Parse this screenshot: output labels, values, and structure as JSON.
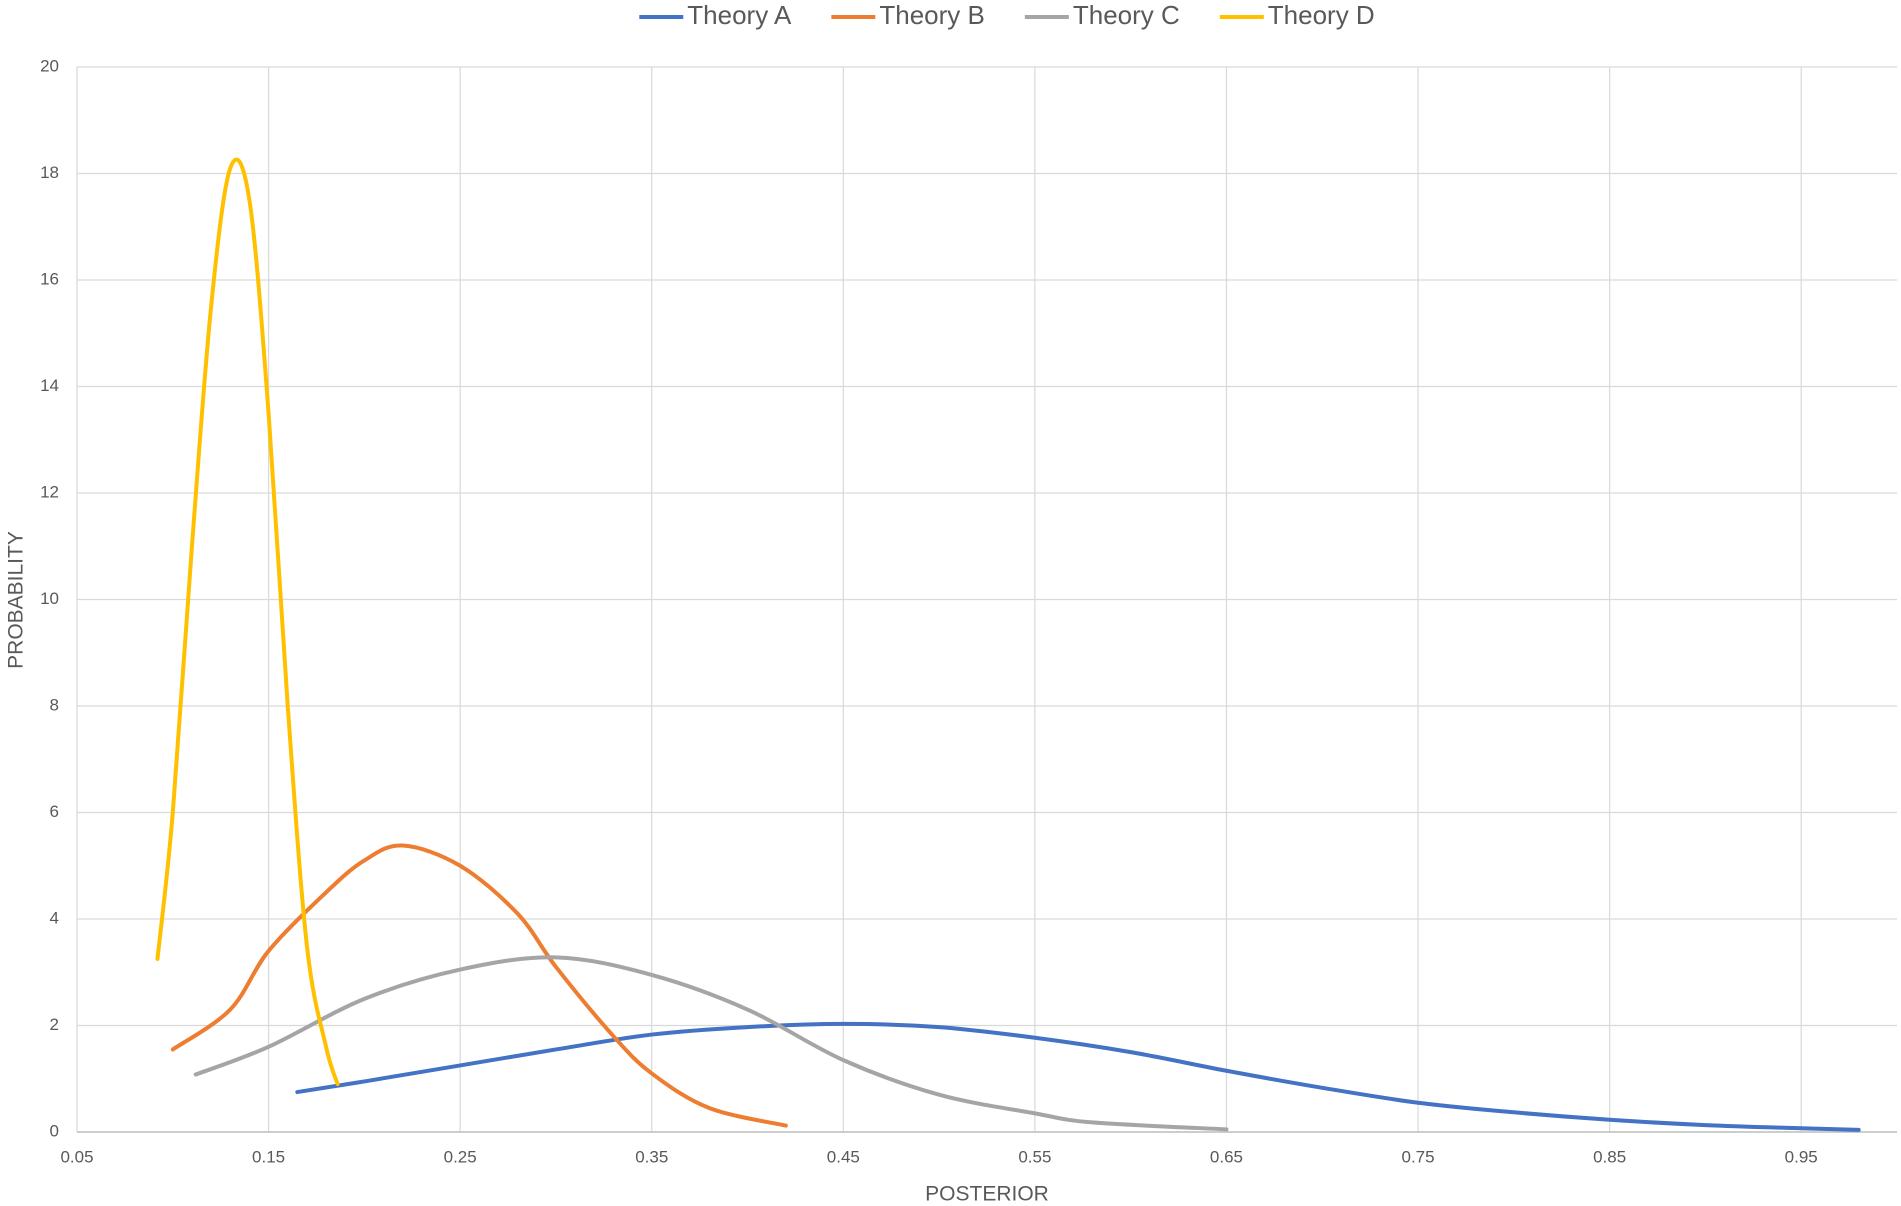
{
  "chart_data": {
    "type": "line",
    "x_label": "POSTERIOR",
    "y_label": "PROBABILITY",
    "xlim": [
      0.05,
      1.0
    ],
    "xticks": [
      0.05,
      0.15,
      0.25,
      0.35,
      0.45,
      0.55,
      0.65,
      0.75,
      0.85,
      0.95
    ],
    "ylim": [
      0,
      20
    ],
    "yticks": [
      0,
      2,
      4,
      6,
      8,
      10,
      12,
      14,
      16,
      18,
      20
    ],
    "grid": true,
    "legend": "top",
    "smooth": true,
    "series": [
      {
        "name": "Theory A",
        "color": "#4472c4",
        "x": [
          0.165,
          0.2,
          0.25,
          0.3,
          0.35,
          0.4,
          0.45,
          0.5,
          0.55,
          0.6,
          0.65,
          0.7,
          0.75,
          0.8,
          0.85,
          0.9,
          0.95,
          0.98
        ],
        "values": [
          0.75,
          0.95,
          1.25,
          1.55,
          1.83,
          1.97,
          2.03,
          1.97,
          1.77,
          1.5,
          1.15,
          0.83,
          0.55,
          0.37,
          0.23,
          0.13,
          0.07,
          0.04
        ]
      },
      {
        "name": "Theory B",
        "color": "#ed7d31",
        "x": [
          0.1,
          0.13,
          0.15,
          0.18,
          0.2,
          0.22,
          0.25,
          0.28,
          0.3,
          0.33,
          0.35,
          0.38,
          0.42
        ],
        "values": [
          1.55,
          2.3,
          3.4,
          4.5,
          5.1,
          5.38,
          5.0,
          4.1,
          3.1,
          1.8,
          1.1,
          0.45,
          0.12
        ]
      },
      {
        "name": "Theory C",
        "color": "#a5a5a5",
        "x": [
          0.112,
          0.15,
          0.2,
          0.25,
          0.3,
          0.35,
          0.4,
          0.45,
          0.5,
          0.55,
          0.58,
          0.65
        ],
        "values": [
          1.08,
          1.6,
          2.5,
          3.05,
          3.28,
          2.95,
          2.3,
          1.35,
          0.7,
          0.35,
          0.18,
          0.05
        ]
      },
      {
        "name": "Theory D",
        "color": "#ffc000",
        "x": [
          0.092,
          0.1,
          0.11,
          0.12,
          0.13,
          0.14,
          0.15,
          0.16,
          0.17,
          0.18,
          0.186
        ],
        "values": [
          3.25,
          6,
          11,
          15.5,
          18.1,
          17.5,
          13.5,
          8,
          3.5,
          1.6,
          0.9
        ]
      }
    ]
  }
}
